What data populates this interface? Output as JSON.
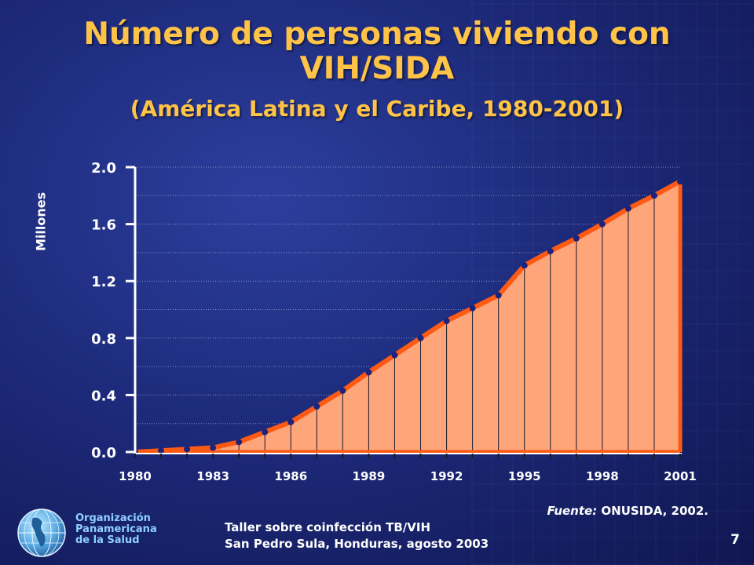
{
  "slide": {
    "title_line1": "Número de personas viviendo con",
    "title_line2": "VIH/SIDA",
    "subtitle": "(América Latina y el Caribe,  1980-2001)",
    "source_prefix": "Fuente:",
    "source_text": " ONUSIDA, 2002.",
    "footer_line1": "Taller sobre coinfección TB/VIH",
    "footer_line2": "San Pedro Sula, Honduras, agosto 2003",
    "page_number": "7",
    "org_line1": "Organización",
    "org_line2": "Panamericana",
    "org_line3": "de la Salud"
  },
  "colors": {
    "title": "#ffc447",
    "area_fill": "#ffa57a",
    "line": "#ff5a14",
    "points": "#1a237e",
    "grid": "#9aa6d8"
  },
  "chart_data": {
    "type": "area",
    "title": "Número de personas viviendo con VIH/SIDA",
    "subtitle": "(América Latina y el Caribe,  1980-2001)",
    "xlabel": "",
    "ylabel": "Millones",
    "x": [
      1980,
      1981,
      1982,
      1983,
      1984,
      1985,
      1986,
      1987,
      1988,
      1989,
      1990,
      1991,
      1992,
      1993,
      1994,
      1995,
      1996,
      1997,
      1998,
      1999,
      2000,
      2001
    ],
    "values": [
      0.0,
      0.01,
      0.02,
      0.03,
      0.07,
      0.14,
      0.21,
      0.32,
      0.43,
      0.56,
      0.68,
      0.8,
      0.92,
      1.01,
      1.1,
      1.31,
      1.41,
      1.5,
      1.6,
      1.71,
      1.8,
      1.9
    ],
    "xticks": [
      "1980",
      "1983",
      "1986",
      "1989",
      "1992",
      "1995",
      "1998",
      "2001"
    ],
    "yticks": [
      "0.0",
      "0.4",
      "0.8",
      "1.2",
      "1.6",
      "2.0"
    ],
    "ylim": [
      0,
      2.0
    ],
    "xlim": [
      1980,
      2001
    ],
    "grid": true,
    "grid_minor": true,
    "legend": "none"
  }
}
